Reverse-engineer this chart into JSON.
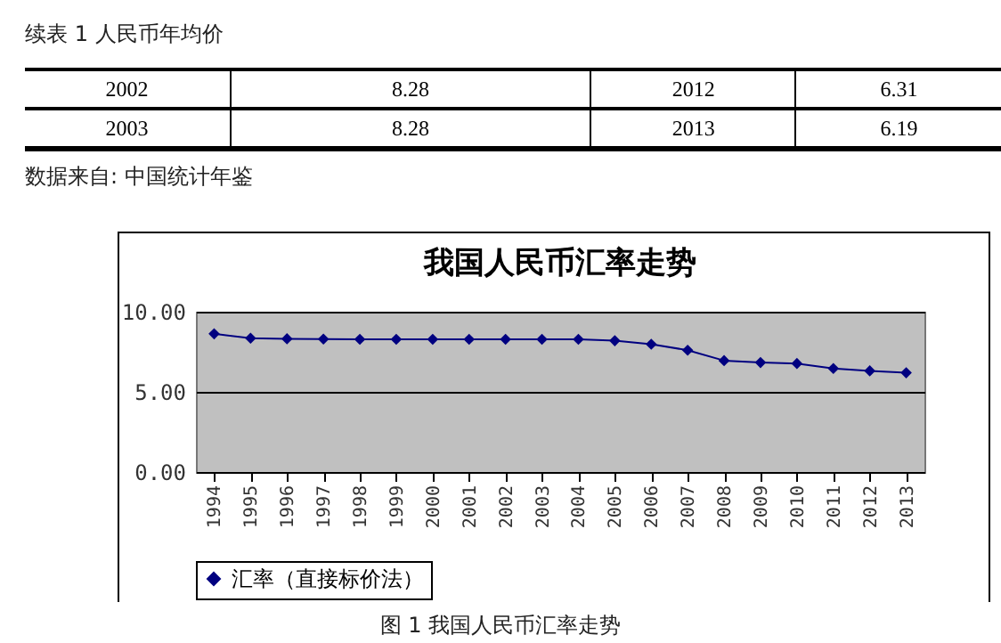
{
  "chart_data": {
    "type": "line",
    "title": "我国人民币汇率走势",
    "categories": [
      "1994",
      "1995",
      "1996",
      "1997",
      "1998",
      "1999",
      "2000",
      "2001",
      "2002",
      "2003",
      "2004",
      "2005",
      "2006",
      "2007",
      "2008",
      "2009",
      "2010",
      "2011",
      "2012",
      "2013"
    ],
    "series": [
      {
        "name": "汇率（直接标价法）",
        "color": "#000080",
        "values": [
          8.62,
          8.35,
          8.31,
          8.29,
          8.28,
          8.28,
          8.28,
          8.28,
          8.28,
          8.28,
          8.28,
          8.19,
          7.97,
          7.6,
          6.95,
          6.83,
          6.77,
          6.46,
          6.31,
          6.19
        ]
      }
    ],
    "ylim": [
      0,
      10
    ],
    "yticks": [
      {
        "value": 0,
        "label": "0.00"
      },
      {
        "value": 5,
        "label": "5.00"
      },
      {
        "value": 10,
        "label": "10.00"
      }
    ],
    "grid": "y",
    "legend": "bottom",
    "marker": "diamond",
    "line_style": "solid",
    "annotations": [
      "续表 1 人民币年均价",
      "2002",
      "8.28",
      "2012",
      "6.31",
      "2003",
      "8.28",
      "2013",
      "6.19",
      "数据来自: 中国统计年鉴",
      "图 1 我国人民币汇率走势"
    ]
  }
}
